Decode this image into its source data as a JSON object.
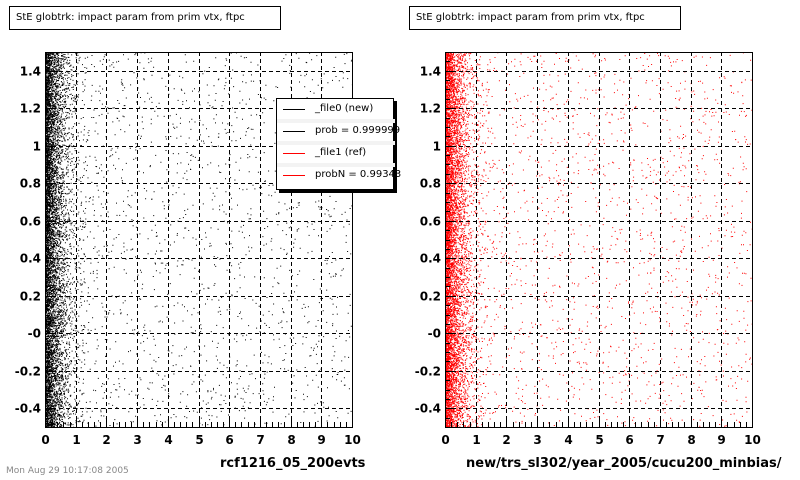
{
  "footer_text": "Mon Aug 29 10:17:08 2005",
  "legend": {
    "entries": [
      {
        "label": "_file0 (new)",
        "color": "#000000"
      },
      {
        "label": "prob = 0.999999",
        "color": "#000000"
      },
      {
        "label": "_file1 (ref)",
        "color": "#ff0000"
      },
      {
        "label": "probN = 0.99343",
        "color": "#ff0000"
      }
    ]
  },
  "chart_data": [
    {
      "type": "scatter",
      "title": "StE globtrk: impact param from prim vtx, ftpc",
      "xlabel": "rcf1216_05_200evts",
      "ylabel": "",
      "xlim": [
        0,
        10
      ],
      "ylim": [
        -0.5,
        1.5
      ],
      "x_ticks": [
        "0",
        "1",
        "2",
        "3",
        "4",
        "5",
        "6",
        "7",
        "8",
        "9",
        "10"
      ],
      "y_ticks": [
        "-0.4",
        "-0.2",
        "-0",
        "0.2",
        "0.4",
        "0.6",
        "0.8",
        "1",
        "1.2",
        "1.4"
      ],
      "grid": true,
      "point_color": "#000000",
      "density_profile": "dense near x=0, falling off rapidly, sparse out to x=10, uniform in y"
    },
    {
      "type": "scatter",
      "title": "StE globtrk: impact param from prim vtx, ftpc",
      "xlabel": "new/trs_sl302/year_2005/cucu200_minbias/",
      "ylabel": "",
      "xlim": [
        0,
        10
      ],
      "ylim": [
        -0.5,
        1.5
      ],
      "x_ticks": [
        "0",
        "1",
        "2",
        "3",
        "4",
        "5",
        "6",
        "7",
        "8",
        "9",
        "10"
      ],
      "y_ticks": [
        "-0.4",
        "-0.2",
        "-0",
        "0.2",
        "0.4",
        "0.6",
        "0.8",
        "1",
        "1.2",
        "1.4"
      ],
      "grid": true,
      "point_color": "#ff0000",
      "density_profile": "dense near x=0, falling off rapidly, sparse out to x=10, uniform in y"
    }
  ]
}
